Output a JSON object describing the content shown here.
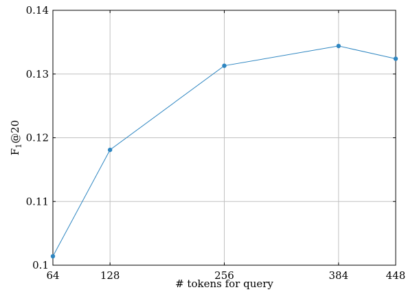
{
  "chart_data": {
    "type": "line",
    "xlabel": "# tokens for query",
    "ylabel_main": "F",
    "ylabel_sub": "1",
    "ylabel_suffix": "@20",
    "x": [
      64,
      128,
      256,
      384,
      448
    ],
    "xticks": [
      64,
      128,
      256,
      384,
      448
    ],
    "xtick_labels": [
      "64",
      "128",
      "256",
      "384",
      "448"
    ],
    "xlim": [
      64,
      448
    ],
    "ylim": [
      0.1,
      0.14
    ],
    "yticks": [
      0.1,
      0.11,
      0.12,
      0.13,
      0.14
    ],
    "ytick_labels": [
      "0.1",
      "0.11",
      "0.12",
      "0.13",
      "0.14"
    ],
    "grid": true,
    "series": [
      {
        "values": [
          0.1014,
          0.1181,
          0.1313,
          0.1344,
          0.1324
        ],
        "color": "#2e86c1"
      }
    ]
  }
}
